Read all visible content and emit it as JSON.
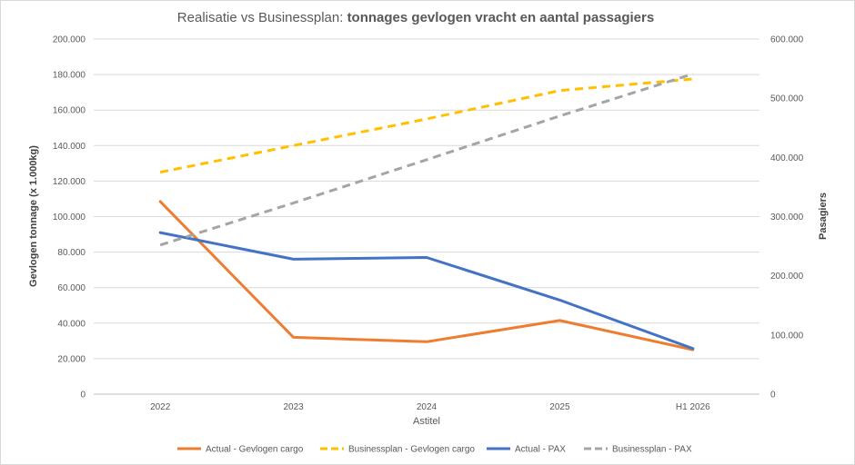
{
  "chart_data": {
    "type": "line",
    "title": "Realisatie vs Businessplan: ",
    "title_bold": "tonnages gevlogen vracht en aantal passagiers",
    "xlabel": "Astitel",
    "ylabel_left": "Gevlogen tonnage (x 1.000kg)",
    "ylabel_right": "Pasagiers",
    "categories": [
      "2022",
      "2023",
      "2024",
      "2025",
      "H1 2026"
    ],
    "ylim_left": [
      0,
      200000
    ],
    "ylim_right": [
      0,
      600000
    ],
    "yticks_left": [
      "0",
      "20.000",
      "40.000",
      "60.000",
      "80.000",
      "100.000",
      "120.000",
      "140.000",
      "160.000",
      "180.000",
      "200.000"
    ],
    "yticks_right": [
      "0",
      "100.000",
      "200.000",
      "300.000",
      "400.000",
      "500.000",
      "600.000"
    ],
    "grid": true,
    "legend_position": "bottom",
    "series": [
      {
        "name": "Actual - Gevlogen cargo",
        "axis": "left",
        "style": "solid",
        "color": "#ED7D31",
        "values": [
          108500,
          32000,
          29500,
          41500,
          25000
        ]
      },
      {
        "name": "Businessplan - Gevlogen cargo",
        "axis": "left",
        "style": "dashed",
        "color": "#FFC000",
        "values": [
          125000,
          140000,
          155000,
          171000,
          177500
        ]
      },
      {
        "name": "Actual - PAX",
        "axis": "right",
        "style": "solid",
        "color": "#4472C4",
        "values": [
          273000,
          228000,
          231000,
          159000,
          77000
        ]
      },
      {
        "name": "Businessplan - PAX",
        "axis": "right",
        "style": "dashed",
        "color": "#A5A5A5",
        "values": [
          252000,
          323000,
          396000,
          470000,
          541000
        ]
      }
    ]
  }
}
